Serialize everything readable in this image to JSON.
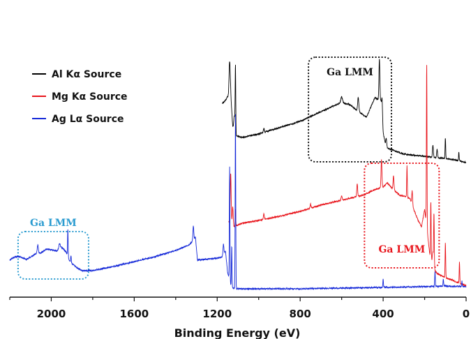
{
  "chart_data": {
    "type": "line",
    "title": "",
    "xlabel": "Binding Energy (eV)",
    "ylabel": "",
    "x_reversed": true,
    "xlim": [
      2200,
      0
    ],
    "x_ticks": [
      2000,
      1600,
      1200,
      800,
      400,
      0
    ],
    "x_tick_labels": [
      "2000",
      "1600",
      "1200",
      "800",
      "400",
      "0"
    ],
    "y_axis_visible": false,
    "grid": false,
    "legend_position": "top-left",
    "series": [
      {
        "name": "Al Kα Source",
        "color": "#000000",
        "baseline": [
          [
            1175,
            148
          ],
          [
            1160,
            144
          ],
          [
            1150,
            138
          ],
          [
            1140,
            140
          ],
          [
            1135,
            135
          ],
          [
            1125,
            182
          ],
          [
            1115,
            190
          ],
          [
            1105,
            195
          ],
          [
            1080,
            197
          ],
          [
            1000,
            192
          ],
          [
            900,
            183
          ],
          [
            800,
            174
          ],
          [
            700,
            160
          ],
          [
            600,
            147
          ],
          [
            560,
            150
          ],
          [
            520,
            160
          ],
          [
            480,
            168
          ],
          [
            440,
            140
          ],
          [
            410,
            145
          ],
          [
            400,
            190
          ],
          [
            390,
            205
          ],
          [
            380,
            212
          ],
          [
            300,
            221
          ],
          [
            200,
            224
          ],
          [
            150,
            226
          ],
          [
            110,
            227
          ],
          [
            80,
            228
          ],
          [
            40,
            230
          ],
          [
            0,
            233
          ]
        ],
        "peaks": [
          [
            1140,
            52,
            4
          ],
          [
            1117,
            22,
            4
          ],
          [
            1112,
            95,
            2
          ],
          [
            975,
            6,
            3
          ],
          [
            600,
            8,
            6
          ],
          [
            520,
            20,
            4
          ],
          [
            418,
            60,
            3
          ],
          [
            405,
            25,
            3
          ],
          [
            385,
            10,
            3
          ],
          [
            160,
            18,
            3
          ],
          [
            140,
            12,
            3
          ],
          [
            100,
            30,
            2
          ],
          [
            35,
            12,
            2
          ]
        ]
      },
      {
        "name": "Mg Kα Source",
        "color": "#e8141b",
        "baseline": [
          [
            1145,
            318
          ],
          [
            1130,
            318
          ],
          [
            1120,
            325
          ],
          [
            1080,
            320
          ],
          [
            1000,
            316
          ],
          [
            900,
            310
          ],
          [
            800,
            303
          ],
          [
            700,
            294
          ],
          [
            600,
            287
          ],
          [
            500,
            280
          ],
          [
            440,
            272
          ],
          [
            420,
            270
          ],
          [
            400,
            268
          ],
          [
            380,
            262
          ],
          [
            350,
            272
          ],
          [
            320,
            280
          ],
          [
            290,
            282
          ],
          [
            270,
            285
          ],
          [
            250,
            302
          ],
          [
            230,
            317
          ],
          [
            215,
            325
          ],
          [
            200,
            300
          ],
          [
            190,
            325
          ],
          [
            175,
            365
          ],
          [
            165,
            372
          ],
          [
            160,
            360
          ],
          [
            150,
            388
          ],
          [
            140,
            392
          ],
          [
            120,
            395
          ],
          [
            100,
            398
          ],
          [
            70,
            401
          ],
          [
            40,
            405
          ],
          [
            0,
            410
          ]
        ],
        "peaks": [
          [
            1135,
            70,
            3
          ],
          [
            1125,
            25,
            3
          ],
          [
            1112,
            25,
            2
          ],
          [
            975,
            8,
            3
          ],
          [
            750,
            6,
            3
          ],
          [
            600,
            6,
            4
          ],
          [
            525,
            18,
            3
          ],
          [
            408,
            40,
            3
          ],
          [
            350,
            20,
            3
          ],
          [
            285,
            45,
            2
          ],
          [
            260,
            20,
            3
          ],
          [
            190,
            235,
            2
          ],
          [
            170,
            80,
            2
          ],
          [
            155,
            70,
            2
          ],
          [
            100,
            50,
            2
          ],
          [
            32,
            30,
            2
          ]
        ]
      },
      {
        "name": "Ag Lα Source",
        "color": "#1428d8",
        "baseline": [
          [
            2200,
            373
          ],
          [
            2175,
            368
          ],
          [
            2150,
            368
          ],
          [
            2120,
            372
          ],
          [
            2075,
            364
          ],
          [
            2045,
            362
          ],
          [
            2025,
            357
          ],
          [
            2000,
            358
          ],
          [
            1975,
            360
          ],
          [
            1950,
            355
          ],
          [
            1930,
            360
          ],
          [
            1915,
            372
          ],
          [
            1900,
            378
          ],
          [
            1880,
            383
          ],
          [
            1850,
            388
          ],
          [
            1800,
            388
          ],
          [
            1700,
            382
          ],
          [
            1600,
            375
          ],
          [
            1500,
            368
          ],
          [
            1400,
            359
          ],
          [
            1340,
            352
          ],
          [
            1320,
            346
          ],
          [
            1305,
            340
          ],
          [
            1295,
            373
          ],
          [
            1260,
            372
          ],
          [
            1200,
            370
          ],
          [
            1175,
            368
          ],
          [
            1160,
            360
          ],
          [
            1150,
            390
          ],
          [
            1130,
            413
          ],
          [
            1110,
            413
          ],
          [
            1105,
            414
          ],
          [
            1000,
            414
          ],
          [
            800,
            414
          ],
          [
            600,
            413
          ],
          [
            400,
            412
          ],
          [
            200,
            411
          ],
          [
            100,
            410
          ],
          [
            0,
            411
          ]
        ],
        "peaks": [
          [
            2065,
            12,
            4
          ],
          [
            1960,
            8,
            5
          ],
          [
            1920,
            40,
            2
          ],
          [
            1905,
            10,
            2
          ],
          [
            1315,
            20,
            3
          ],
          [
            1170,
            15,
            3
          ],
          [
            1140,
            162,
            2
          ],
          [
            1130,
            60,
            2
          ],
          [
            1112,
            250,
            2
          ],
          [
            400,
            12,
            2
          ],
          [
            150,
            22,
            2
          ],
          [
            110,
            10,
            2
          ],
          [
            20,
            8,
            2
          ]
        ]
      }
    ],
    "annotations": [
      {
        "label": "Ga LMM",
        "color": "#111111",
        "series": "Al Kα Source",
        "x_range": [
          760,
          360
        ]
      },
      {
        "label": "Ga LMM",
        "color": "#e8141b",
        "series": "Mg Kα Source",
        "x_range": [
          490,
          130
        ]
      },
      {
        "label": "Ga LMM",
        "color": "#2a9bd0",
        "series": "Ag Lα Source",
        "x_range": [
          2160,
          1820
        ]
      }
    ]
  }
}
